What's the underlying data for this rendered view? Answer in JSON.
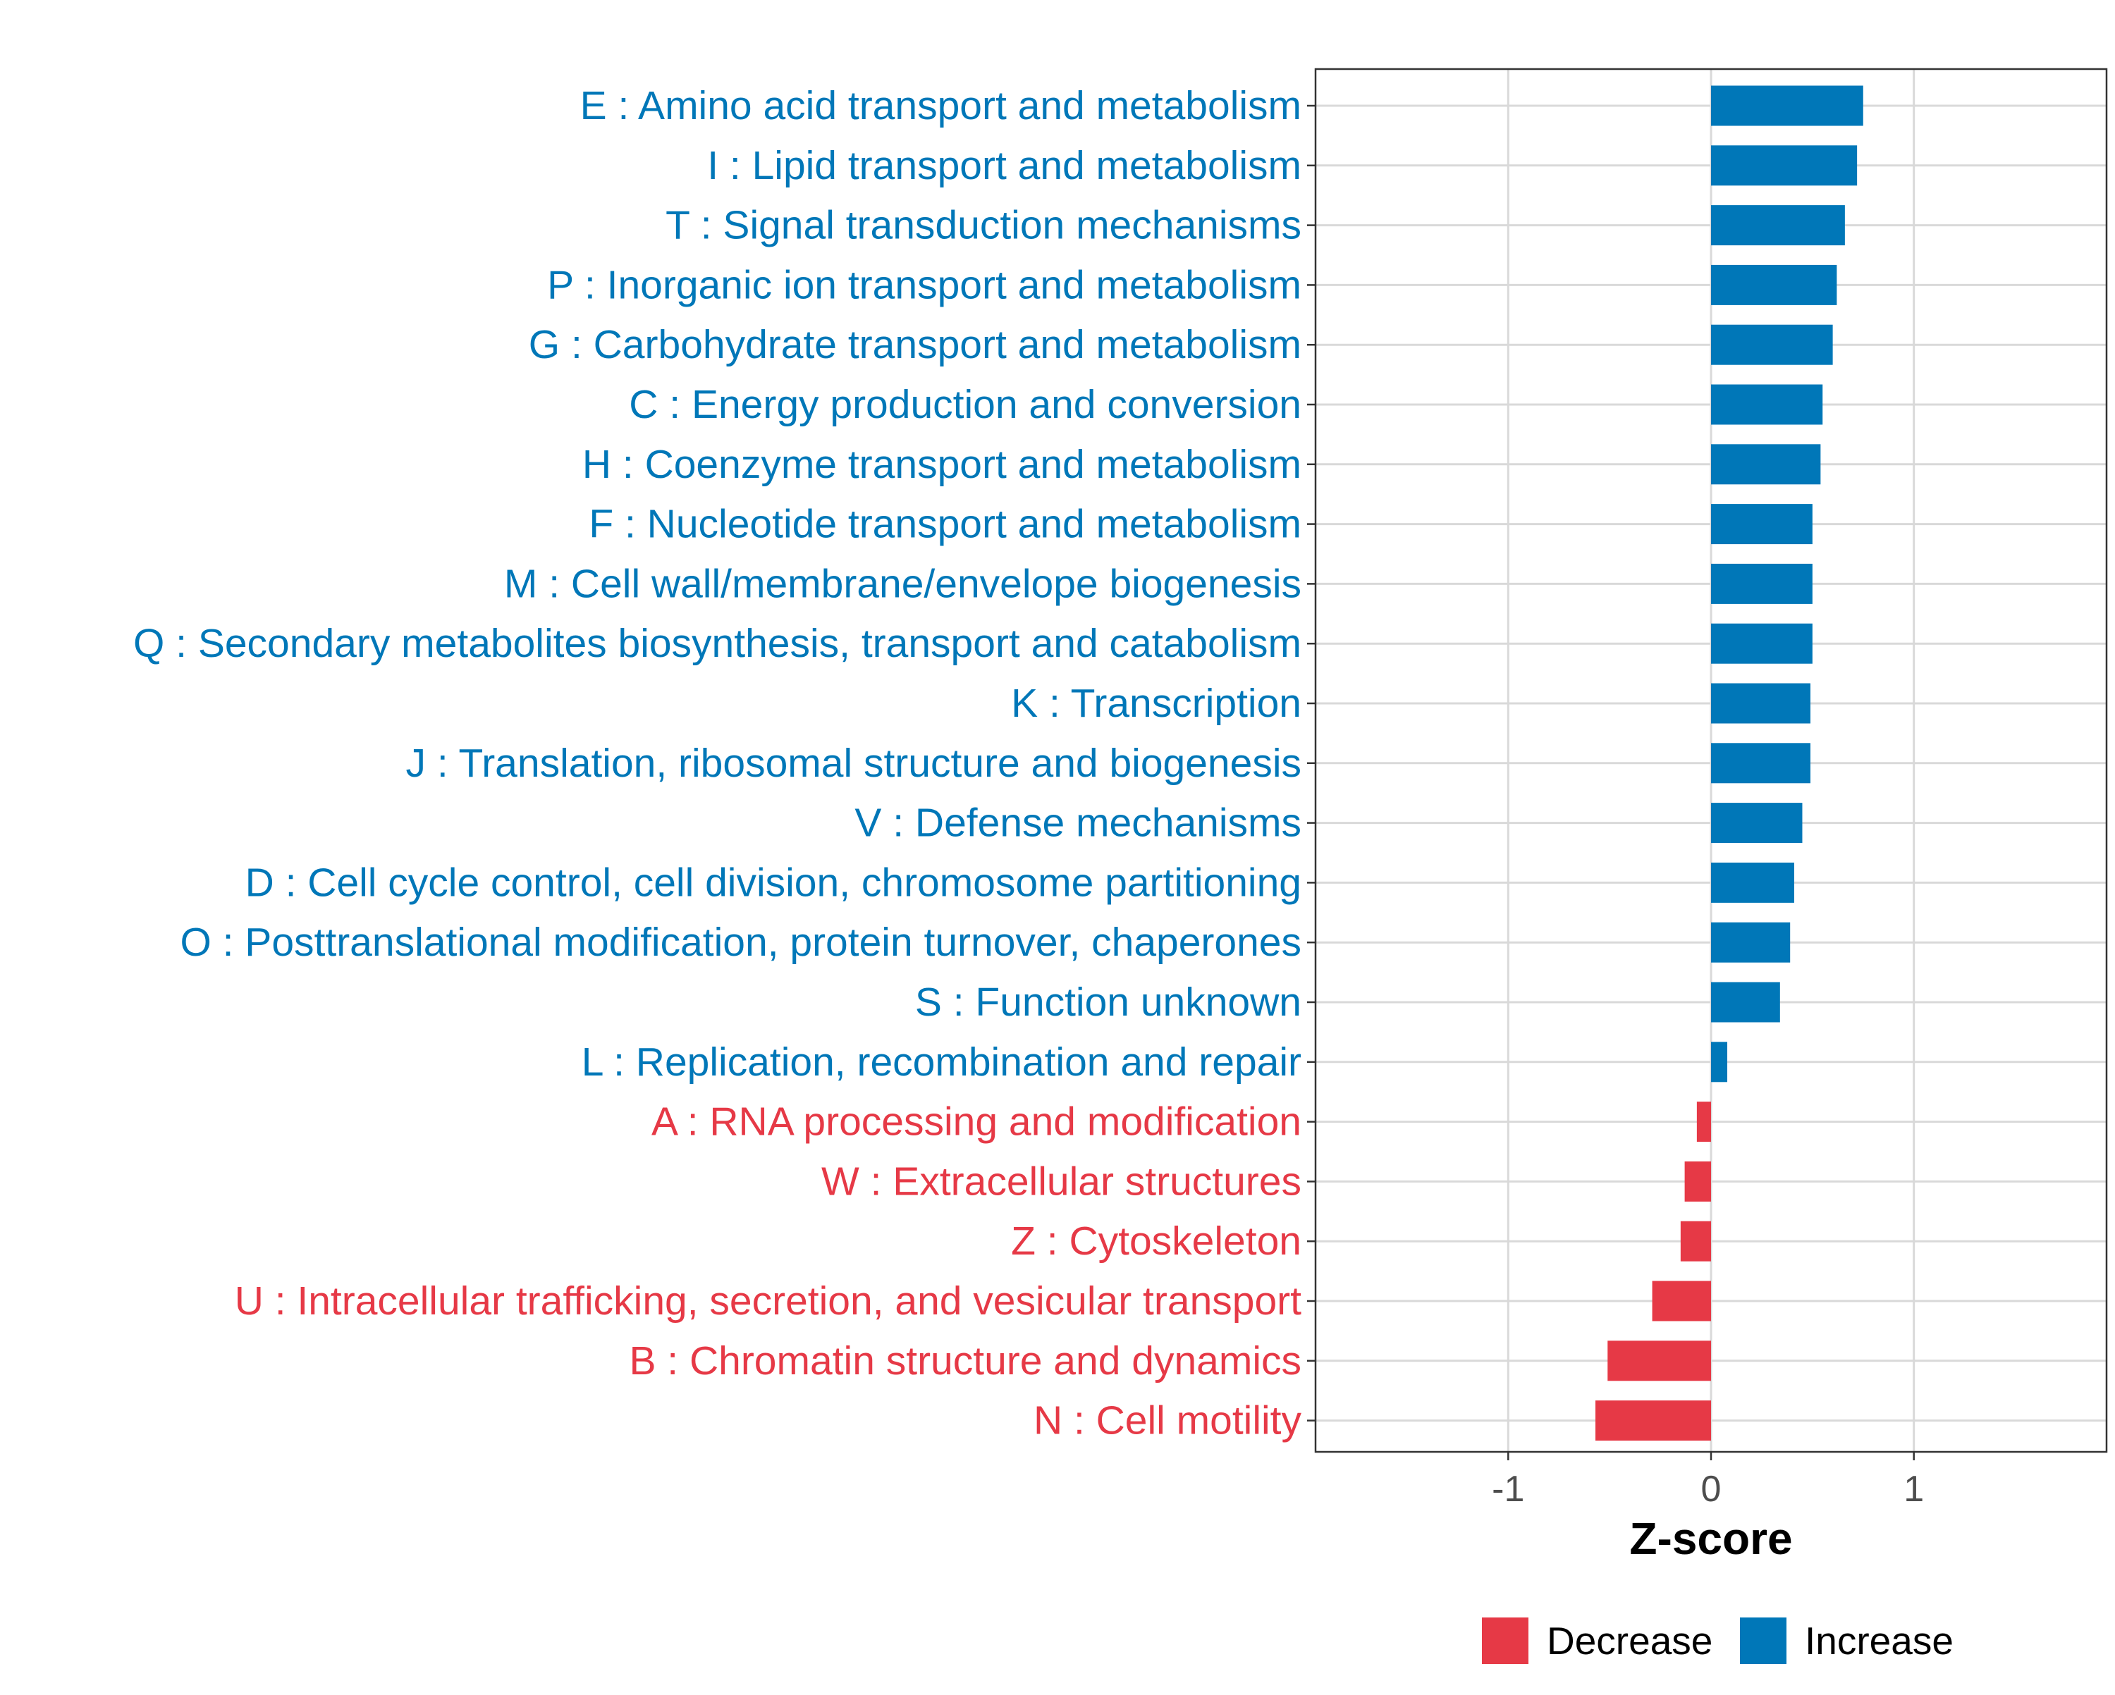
{
  "chart_data": {
    "type": "bar",
    "orientation": "horizontal",
    "title": "",
    "xlabel": "Z-score",
    "ylabel": "",
    "xlim": [
      -1.95,
      1.95
    ],
    "xticks": [
      -1,
      0,
      1
    ],
    "xtick_labels": [
      "-1",
      "0",
      "1"
    ],
    "grid": true,
    "legend_position": "bottom",
    "colors": {
      "Increase": "#0077B8",
      "Decrease": "#E63946"
    },
    "legend": [
      {
        "label": "Decrease",
        "color": "#E63946"
      },
      {
        "label": "Increase",
        "color": "#0077B8"
      }
    ],
    "categories": [
      "E : Amino acid transport and metabolism",
      "I : Lipid transport and metabolism",
      "T : Signal transduction mechanisms",
      "P : Inorganic ion transport and metabolism",
      "G : Carbohydrate transport and metabolism",
      "C : Energy production and conversion",
      "H : Coenzyme transport and metabolism",
      "F : Nucleotide transport and metabolism",
      "M : Cell wall/membrane/envelope biogenesis",
      "Q : Secondary metabolites biosynthesis, transport and catabolism",
      "K : Transcription",
      "J : Translation, ribosomal structure and biogenesis",
      "V : Defense mechanisms",
      "D : Cell cycle control, cell division, chromosome partitioning",
      "O : Posttranslational modification, protein turnover, chaperones",
      "S : Function unknown",
      "L : Replication, recombination and repair",
      "A : RNA processing and modification",
      "W : Extracellular structures",
      "Z : Cytoskeleton",
      "U : Intracellular trafficking, secretion, and vesicular transport",
      "B : Chromatin structure and dynamics",
      "N : Cell motility"
    ],
    "values": [
      0.75,
      0.72,
      0.66,
      0.62,
      0.6,
      0.55,
      0.54,
      0.5,
      0.5,
      0.5,
      0.49,
      0.49,
      0.45,
      0.41,
      0.39,
      0.34,
      0.08,
      -0.07,
      -0.13,
      -0.15,
      -0.29,
      -0.51,
      -0.57
    ],
    "directions": [
      "Increase",
      "Increase",
      "Increase",
      "Increase",
      "Increase",
      "Increase",
      "Increase",
      "Increase",
      "Increase",
      "Increase",
      "Increase",
      "Increase",
      "Increase",
      "Increase",
      "Increase",
      "Increase",
      "Increase",
      "Decrease",
      "Decrease",
      "Decrease",
      "Decrease",
      "Decrease",
      "Decrease"
    ]
  }
}
